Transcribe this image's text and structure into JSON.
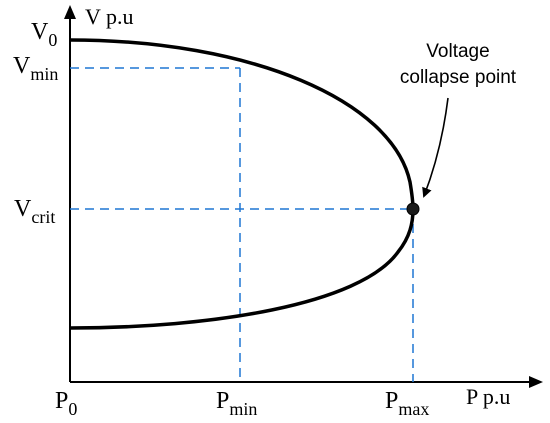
{
  "axes": {
    "y_label": "V p.u",
    "x_label": "P p.u"
  },
  "y_ticks": {
    "v0": {
      "main": "V",
      "sub": "0"
    },
    "vmin": {
      "main": "V",
      "sub": "min"
    },
    "vcrit": {
      "main": "V",
      "sub": "crit"
    }
  },
  "x_ticks": {
    "p0": {
      "main": "P",
      "sub": "0"
    },
    "pmin": {
      "main": "P",
      "sub": "min"
    },
    "pmax": {
      "main": "P",
      "sub": "max"
    }
  },
  "annotation": {
    "line1": "Voltage",
    "line2": "collapse point"
  },
  "colors": {
    "curve": "#000000",
    "guide": "#1f77d4",
    "axis": "#000000"
  }
}
